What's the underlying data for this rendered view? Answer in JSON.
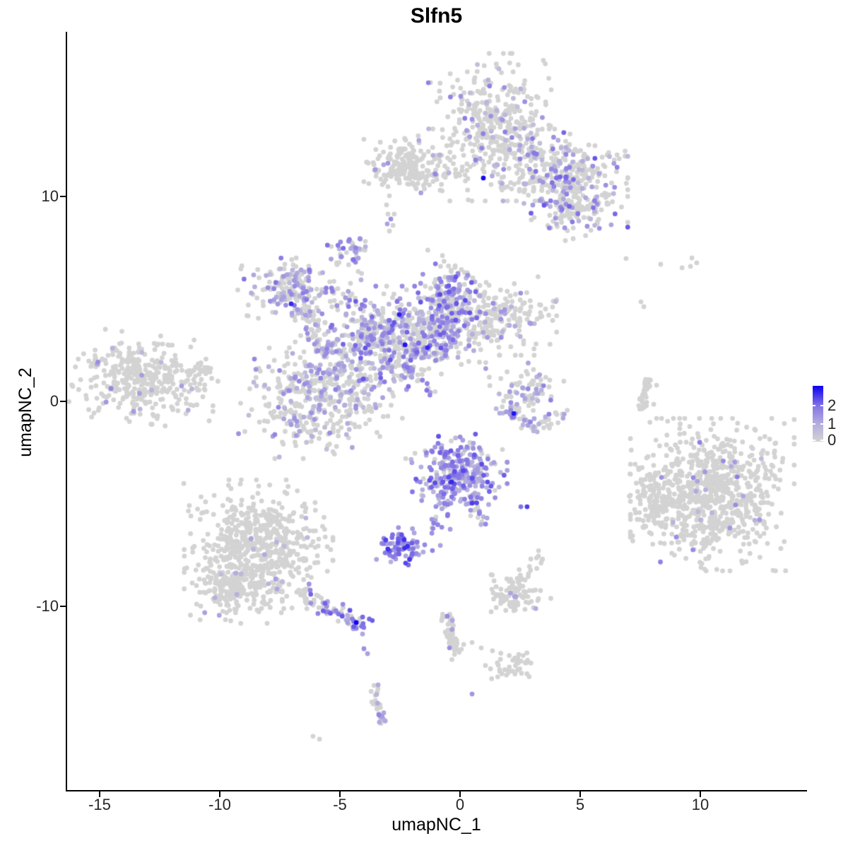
{
  "title": "Slfn5",
  "axes": {
    "x_label": "umapNC_1",
    "y_label": "umapNC_2",
    "x_ticks": [
      {
        "label": "-15",
        "value": -15
      },
      {
        "label": "-10",
        "value": -10
      },
      {
        "label": "-5",
        "value": -5
      },
      {
        "label": "0",
        "value": 0
      },
      {
        "label": "5",
        "value": 5
      },
      {
        "label": "10",
        "value": 10
      }
    ],
    "y_ticks": [
      {
        "label": "10",
        "value": 10
      },
      {
        "label": "0",
        "value": 0
      },
      {
        "label": "-10",
        "value": -10
      }
    ]
  },
  "legend": {
    "max_value": 3.1,
    "breaks": [
      {
        "label": "2",
        "value": 2
      },
      {
        "label": "1",
        "value": 1
      },
      {
        "label": "0",
        "value": 0
      }
    ],
    "gradient_low": "#D3D3D3",
    "gradient_high": "#2B06F9"
  },
  "colors": {
    "background": "#FFFFFF",
    "axis": "#000000",
    "point_grey": "#D3D3D3",
    "scale_stops": [
      [
        0,
        211,
        211,
        211
      ],
      [
        1,
        179,
        173,
        222
      ],
      [
        2,
        131,
        115,
        229
      ],
      [
        3.1,
        10,
        0,
        240
      ]
    ]
  },
  "chart_data": {
    "type": "scatter",
    "title": "Slfn5",
    "xlabel": "umapNC_1",
    "ylabel": "umapNC_2",
    "xlim": [
      -16.353,
      14.382
    ],
    "ylim": [
      -18.966,
      18.034
    ],
    "grid": false,
    "legend_position": "right",
    "color_scale": {
      "min": 0,
      "max": 3.1,
      "breaks": [
        0,
        1,
        2
      ],
      "low": "#D3D3D3",
      "high": "#0A00F0"
    },
    "point_radius_px": 3.4,
    "clusters": [
      {
        "name": "top-main-lobe",
        "shape": "gauss",
        "x": 1.44,
        "y": 13.38,
        "sx": 1.15,
        "sy": 1.5,
        "rot": 0,
        "n": 400,
        "frac": 0.13,
        "v": [
          0.5,
          1.9
        ]
      },
      {
        "name": "top-right-lobe",
        "shape": "gauss",
        "x": 4.82,
        "y": 10.79,
        "sx": 0.9,
        "sy": 0.97,
        "rot": 0,
        "n": 230,
        "frac": 0.3,
        "v": [
          0.7,
          2.3
        ]
      },
      {
        "name": "top-right-lower",
        "shape": "gauss",
        "x": 4.68,
        "y": 9.24,
        "sx": 0.85,
        "sy": 0.58,
        "rot": 0,
        "n": 95,
        "frac": 0.33,
        "v": [
          0.7,
          2.1
        ]
      },
      {
        "name": "top-bridge",
        "shape": "gauss",
        "x": 3.35,
        "y": 11.83,
        "sx": 0.62,
        "sy": 0.62,
        "rot": 0,
        "n": 80,
        "frac": 0.2,
        "v": [
          0.7,
          1.9
        ]
      },
      {
        "name": "top-bridge-low",
        "shape": "path",
        "pts": [
          [
            1.44,
            10.69
          ],
          [
            3.5,
            10.21
          ]
        ],
        "w": 8,
        "n": 18,
        "frac": 0.06,
        "v": [
          0.8,
          1.4
        ]
      },
      {
        "name": "top-arm-strand",
        "shape": "path",
        "pts": [
          [
            -3.03,
            11.21
          ],
          [
            0.12,
            11.03
          ]
        ],
        "w": 8,
        "n": 35,
        "frac": 0.12,
        "v": [
          0.8,
          1.7
        ]
      },
      {
        "name": "top-left-blob",
        "shape": "gauss",
        "x": -2.18,
        "y": 11.59,
        "sx": 0.76,
        "sy": 0.59,
        "rot": 0,
        "n": 170,
        "frac": 0.03,
        "v": [
          0.8,
          1.5
        ]
      },
      {
        "name": "top-left-extras",
        "shape": "points",
        "pts": [
          [
            -3.53,
            11.31,
            1.3
          ],
          [
            -3.18,
            11.55,
            1.1
          ],
          [
            -3.0,
            11.62,
            1.4
          ],
          [
            0.97,
            10.9,
            3.0
          ],
          [
            -3.0,
            10.48,
            0
          ],
          [
            -2.94,
            10.03,
            0
          ],
          [
            -3.06,
            9.59,
            0
          ],
          [
            -3.0,
            9.14,
            0
          ],
          [
            -2.74,
            9.14,
            0
          ],
          [
            -2.88,
            8.9,
            1.5
          ],
          [
            -3.03,
            8.66,
            1.2
          ],
          [
            -2.79,
            8.59,
            0
          ],
          [
            -2.94,
            8.31,
            0
          ]
        ]
      },
      {
        "name": "cx-topleft-arm",
        "shape": "gauss",
        "x": -6.79,
        "y": 5.34,
        "sx": 1.06,
        "sy": 0.69,
        "rot": -15,
        "n": 210,
        "frac": 0.35,
        "v": [
          0.6,
          2.0
        ]
      },
      {
        "name": "cx-knob",
        "shape": "gauss",
        "x": -4.56,
        "y": 7.41,
        "sx": 0.4,
        "sy": 0.4,
        "rot": 0,
        "n": 40,
        "frac": 0.6,
        "v": [
          0.8,
          2.2
        ]
      },
      {
        "name": "cx-knob-tail",
        "shape": "points",
        "pts": [
          [
            -4.35,
            6.79,
            1.6
          ],
          [
            -4.24,
            6.34,
            0
          ],
          [
            -4.12,
            5.93,
            0.9
          ]
        ]
      },
      {
        "name": "cx-top-arm",
        "shape": "gauss",
        "x": -0.44,
        "y": 5.1,
        "sx": 0.5,
        "sy": 0.95,
        "rot": 0,
        "n": 170,
        "frac": 0.55,
        "v": [
          0.8,
          2.4
        ]
      },
      {
        "name": "cx-center",
        "shape": "gauss",
        "x": -2.88,
        "y": 3.1,
        "sx": 1.3,
        "sy": 1.05,
        "rot": 0,
        "n": 440,
        "frac": 0.48,
        "v": [
          0.6,
          2.3
        ]
      },
      {
        "name": "cx-bottomleft",
        "shape": "gauss",
        "x": -5.74,
        "y": 0.21,
        "sx": 1.45,
        "sy": 1.25,
        "rot": 0,
        "n": 430,
        "frac": 0.33,
        "v": [
          0.5,
          1.7
        ]
      },
      {
        "name": "cx-right-arm",
        "shape": "gauss",
        "x": 1.5,
        "y": 4.17,
        "sx": 1.05,
        "sy": 0.8,
        "rot": 0,
        "n": 210,
        "frac": 0.17,
        "v": [
          0.6,
          1.7
        ]
      },
      {
        "name": "cx-mid",
        "shape": "gauss",
        "x": -0.85,
        "y": 3.28,
        "sx": 0.8,
        "sy": 0.7,
        "rot": 0,
        "n": 140,
        "frac": 0.5,
        "v": [
          0.7,
          2.2
        ]
      },
      {
        "name": "cx-bridge",
        "shape": "path",
        "pts": [
          [
            -6.44,
            4.48
          ],
          [
            -5.32,
            2.07
          ]
        ],
        "w": 18,
        "n": 70,
        "frac": 0.4,
        "v": [
          0.6,
          1.8
        ]
      },
      {
        "name": "cx-streak",
        "shape": "path",
        "pts": [
          [
            -2.79,
            2.28
          ],
          [
            -1.21,
            0.41
          ]
        ],
        "w": 7,
        "n": 20,
        "fracGrad": [
          0.85,
          0.5
        ],
        "v": [
          0.9,
          2.0
        ]
      },
      {
        "name": "cx-darks",
        "shape": "points",
        "pts": [
          [
            -2.53,
            4.24,
            2.8
          ],
          [
            -2.29,
            2.76,
            2.9
          ],
          [
            -1.35,
            2.62,
            2.7
          ],
          [
            -7.03,
            4.76,
            2.7
          ]
        ]
      },
      {
        "name": "left-cluster",
        "shape": "gauss",
        "x": -13.09,
        "y": 1.1,
        "sx": 1.25,
        "sy": 0.9,
        "rot": -8,
        "n": 380,
        "frac": 0.035,
        "v": [
          0.7,
          1.8
        ]
      },
      {
        "name": "left-tip",
        "shape": "path",
        "pts": [
          [
            -11.21,
            1.38
          ],
          [
            -10.44,
            1.59
          ]
        ],
        "w": 10,
        "n": 18,
        "frac": 0.05,
        "v": [
          0.8,
          1.4
        ]
      },
      {
        "name": "crescent-top",
        "shape": "gauss",
        "x": 2.76,
        "y": 0.55,
        "sx": 0.65,
        "sy": 0.55,
        "rot": 0,
        "n": 75,
        "frac": 0.3,
        "v": [
          0.7,
          1.8
        ]
      },
      {
        "name": "crescent-arc",
        "shape": "path",
        "pts": [
          [
            1.85,
            0.28
          ],
          [
            2.26,
            -0.83
          ],
          [
            3.26,
            -1.17
          ],
          [
            4.38,
            -0.69
          ]
        ],
        "w": 10,
        "n": 55,
        "fracGrad": [
          0.7,
          0.05
        ],
        "v": [
          0.8,
          1.9
        ]
      },
      {
        "name": "crescent-dark",
        "shape": "points",
        "pts": [
          [
            2.24,
            -0.59,
            2.9
          ]
        ]
      },
      {
        "name": "strand-right",
        "shape": "path",
        "pts": [
          [
            7.91,
            1.28
          ],
          [
            7.71,
            0.45
          ],
          [
            7.59,
            -0.41
          ]
        ],
        "w": 6,
        "n": 40,
        "frac": 0.02,
        "v": [
          0.8,
          1.2
        ]
      },
      {
        "name": "right-cluster",
        "shape": "gauss",
        "x": 10.5,
        "y": -4.55,
        "sx": 1.42,
        "sy": 1.55,
        "rot": 0,
        "n": 780,
        "frac": 0.033,
        "v": [
          0.6,
          1.9
        ]
      },
      {
        "name": "right-cluster-spur",
        "shape": "gauss",
        "x": 8.09,
        "y": -4.66,
        "sx": 0.5,
        "sy": 0.95,
        "rot": 0,
        "n": 100,
        "frac": 0.02,
        "v": [
          0.6,
          1.4
        ]
      },
      {
        "name": "purple-cluster",
        "shape": "gauss",
        "x": -0.15,
        "y": -3.59,
        "sx": 0.88,
        "sy": 0.83,
        "rot": 0,
        "n": 290,
        "frac": 0.85,
        "v": [
          0.7,
          2.4
        ]
      },
      {
        "name": "purple-tail",
        "shape": "path",
        "pts": [
          [
            -0.68,
            -4.76
          ],
          [
            -1.24,
            -6.34
          ]
        ],
        "w": 7,
        "n": 14,
        "frac": 0.85,
        "v": [
          1.0,
          2.0
        ]
      },
      {
        "name": "purple-arm",
        "shape": "path",
        "pts": [
          [
            0.35,
            -4.55
          ],
          [
            1.06,
            -6.0
          ]
        ],
        "w": 8,
        "n": 16,
        "frac": 0.6,
        "v": [
          0.8,
          2.0
        ]
      },
      {
        "name": "purple-extras",
        "shape": "points",
        "pts": [
          [
            2.53,
            -5.14,
            2.0
          ],
          [
            2.79,
            -5.14,
            2.5
          ],
          [
            -0.76,
            -6.14,
            1.6
          ],
          [
            -0.41,
            -6.24,
            1.3
          ],
          [
            -0.35,
            -3.93,
            2.7
          ],
          [
            0.5,
            -4.97,
            2.5
          ]
        ]
      },
      {
        "name": "intense-blob",
        "shape": "gauss",
        "x": -2.47,
        "y": -7.07,
        "sx": 0.42,
        "sy": 0.38,
        "rot": 0,
        "n": 75,
        "frac": 0.93,
        "v": [
          1.0,
          2.7
        ]
      },
      {
        "name": "intense-extras",
        "shape": "points",
        "pts": [
          [
            -1.47,
            -7.0,
            1.6
          ],
          [
            -1.15,
            -7.28,
            1.7
          ],
          [
            -0.82,
            -7.03,
            1.2
          ],
          [
            -2.68,
            -7.69,
            1.4
          ],
          [
            -2.88,
            -7.83,
            0.9
          ]
        ]
      },
      {
        "name": "bottomleft-main",
        "shape": "gauss",
        "x": -8.41,
        "y": -7.07,
        "sx": 1.3,
        "sy": 1.35,
        "rot": 0,
        "n": 560,
        "frac": 0.02,
        "v": [
          0.6,
          1.5
        ]
      },
      {
        "name": "bottomleft-low",
        "shape": "gauss",
        "x": -9.44,
        "y": -9.03,
        "sx": 0.85,
        "sy": 0.75,
        "rot": 0,
        "n": 220,
        "frac": 0.02,
        "v": [
          0.6,
          1.3
        ]
      },
      {
        "name": "bottomleft-tail",
        "shape": "path",
        "pts": [
          [
            -6.68,
            -9.41
          ],
          [
            -3.97,
            -10.97
          ]
        ],
        "w": 13,
        "n": 75,
        "fracGrad": [
          0.1,
          0.8
        ],
        "v": [
          0.9,
          2.3
        ]
      },
      {
        "name": "bottomleft-extras",
        "shape": "points",
        "pts": [
          [
            -4.32,
            -10.79,
            3.05
          ],
          [
            -4.0,
            -12.07,
            1.5
          ],
          [
            -3.85,
            -12.31,
            1.2
          ]
        ]
      },
      {
        "name": "small-cluster-br",
        "shape": "gauss",
        "x": 2.29,
        "y": -9.41,
        "sx": 0.62,
        "sy": 0.5,
        "rot": 0,
        "n": 95,
        "frac": 0.04,
        "v": [
          0.8,
          1.2
        ]
      },
      {
        "name": "small-knob",
        "shape": "gauss",
        "x": 3.26,
        "y": -7.72,
        "sx": 0.2,
        "sy": 0.18,
        "rot": 0,
        "n": 9,
        "frac": 0,
        "v": [
          0,
          0
        ]
      },
      {
        "name": "bottom-strand",
        "shape": "path",
        "pts": [
          [
            -0.59,
            -10.28
          ],
          [
            -0.38,
            -11.28
          ],
          [
            -0.15,
            -12.41
          ]
        ],
        "w": 9,
        "n": 55,
        "frac": 0.09,
        "v": [
          1.0,
          1.7
        ]
      },
      {
        "name": "bottom-strand-extras",
        "shape": "points",
        "pts": [
          [
            -0.53,
            -10.48,
            1.6
          ],
          [
            -0.32,
            -10.69,
            1.1
          ],
          [
            -0.44,
            -12.03,
            1.5
          ]
        ]
      },
      {
        "name": "dots-mid",
        "shape": "points",
        "pts": [
          [
            0.15,
            -11.86,
            0
          ],
          [
            0.5,
            -11.76,
            0
          ],
          [
            0.88,
            -12.03,
            0
          ],
          [
            1.35,
            -12.17,
            0
          ]
        ]
      },
      {
        "name": "bottom-blob",
        "shape": "gauss",
        "x": 2.24,
        "y": -12.9,
        "sx": 0.5,
        "sy": 0.35,
        "rot": 25,
        "n": 42,
        "frac": 0,
        "v": [
          0,
          0
        ]
      },
      {
        "name": "bottom-strand2",
        "shape": "path",
        "pts": [
          [
            -3.65,
            -13.69
          ],
          [
            -3.47,
            -14.72
          ],
          [
            -3.21,
            -15.59
          ]
        ],
        "w": 8,
        "n": 30,
        "frac": 0.5,
        "v": [
          0.8,
          1.8
        ]
      },
      {
        "name": "singles-grey",
        "shape": "points",
        "pts": [
          [
            6.91,
            6.97,
            0
          ],
          [
            8.35,
            6.69,
            0
          ],
          [
            9.24,
            6.52,
            0
          ],
          [
            9.59,
            6.59,
            0
          ],
          [
            9.65,
            7.0,
            0
          ],
          [
            9.85,
            6.76,
            0
          ],
          [
            7.53,
            4.86,
            0
          ],
          [
            7.65,
            4.62,
            0
          ],
          [
            8.18,
            0.79,
            0
          ],
          [
            8.06,
            -0.14,
            0
          ],
          [
            -6.12,
            -16.34,
            0
          ],
          [
            -5.85,
            -16.48,
            0
          ],
          [
            2.85,
            -8.41,
            0
          ]
        ]
      },
      {
        "name": "single-purple",
        "shape": "points",
        "pts": [
          [
            0.5,
            -14.28,
            1.4
          ]
        ]
      }
    ]
  }
}
